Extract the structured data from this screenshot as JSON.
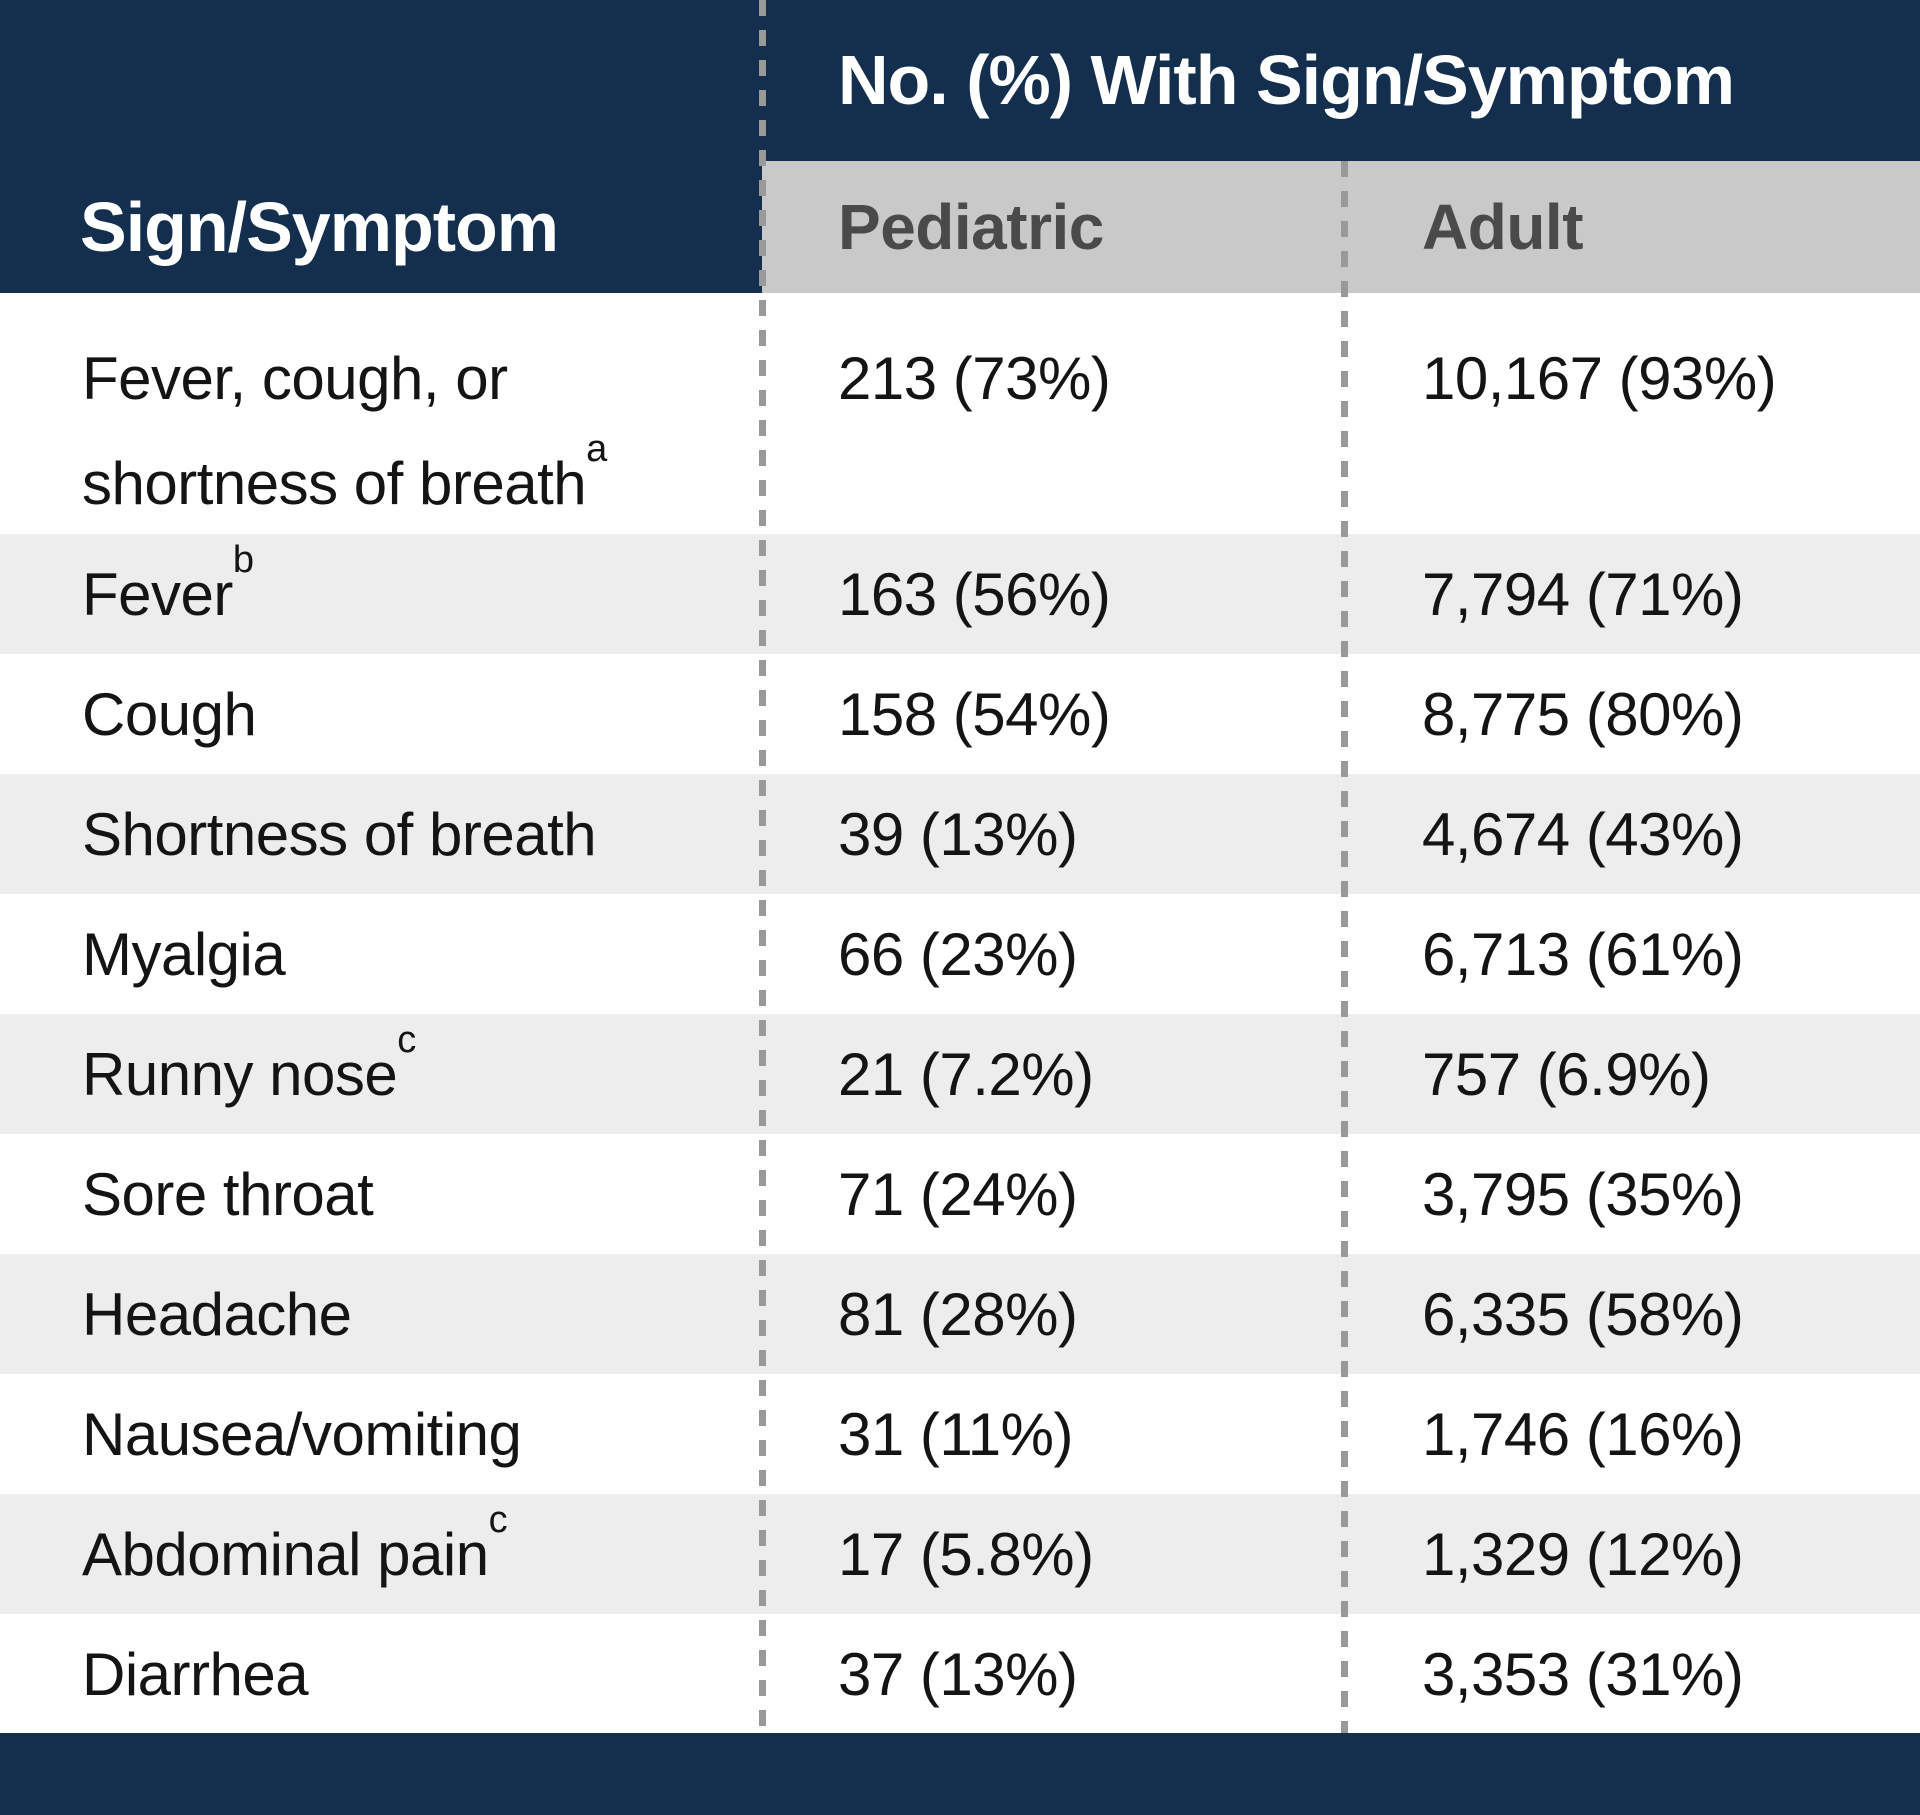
{
  "chart_data": {
    "type": "table",
    "title": "No. (%) With Sign/Symptom",
    "columns": [
      "Sign/Symptom",
      "Pediatric",
      "Adult"
    ],
    "rows": [
      {
        "label": "Fever, cough, or shortness of breath",
        "sup": "a",
        "pediatric": "213 (73%)",
        "adult": "10,167 (93%)"
      },
      {
        "label": "Fever",
        "sup": "b",
        "pediatric": "163 (56%)",
        "adult": "7,794 (71%)"
      },
      {
        "label": "Cough",
        "sup": "",
        "pediatric": "158 (54%)",
        "adult": "8,775 (80%)"
      },
      {
        "label": "Shortness of breath",
        "sup": "",
        "pediatric": "39 (13%)",
        "adult": "4,674 (43%)"
      },
      {
        "label": "Myalgia",
        "sup": "",
        "pediatric": "66 (23%)",
        "adult": "6,713 (61%)"
      },
      {
        "label": "Runny nose",
        "sup": "c",
        "pediatric": "21 (7.2%)",
        "adult": "757 (6.9%)"
      },
      {
        "label": "Sore throat",
        "sup": "",
        "pediatric": "71 (24%)",
        "adult": "3,795 (35%)"
      },
      {
        "label": "Headache",
        "sup": "",
        "pediatric": "81 (28%)",
        "adult": "6,335 (58%)"
      },
      {
        "label": "Nausea/vomiting",
        "sup": "",
        "pediatric": "31 (11%)",
        "adult": "1,746 (16%)"
      },
      {
        "label": "Abdominal pain",
        "sup": "c",
        "pediatric": "17 (5.8%)",
        "adult": "1,329 (12%)"
      },
      {
        "label": "Diarrhea",
        "sup": "",
        "pediatric": "37 (13%)",
        "adult": "3,353 (31%)"
      }
    ]
  },
  "colors": {
    "navy": "#132F4D",
    "band_gray": "#C9C9C9",
    "band_text": "#4A4A4A",
    "alt_row_gray": "#EDEDED",
    "dash_gray": "#999999",
    "body_text": "#141414"
  }
}
